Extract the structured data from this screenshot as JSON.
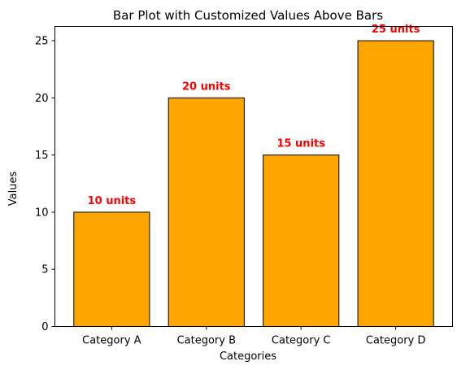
{
  "chart_data": {
    "type": "bar",
    "title": "Bar Plot with Customized Values Above Bars",
    "xlabel": "Categories",
    "ylabel": "Values",
    "categories": [
      "Category A",
      "Category B",
      "Category C",
      "Category D"
    ],
    "values": [
      10,
      20,
      15,
      25
    ],
    "data_labels": [
      "10 units",
      "20 units",
      "15 units",
      "25 units"
    ],
    "yticks": [
      0,
      5,
      10,
      15,
      20,
      25
    ],
    "ylim": [
      0,
      26.25
    ],
    "grid": false,
    "colors": {
      "bar_fill": "#FFA500",
      "bar_edge": "#000000",
      "data_label": "#FF0000"
    }
  }
}
